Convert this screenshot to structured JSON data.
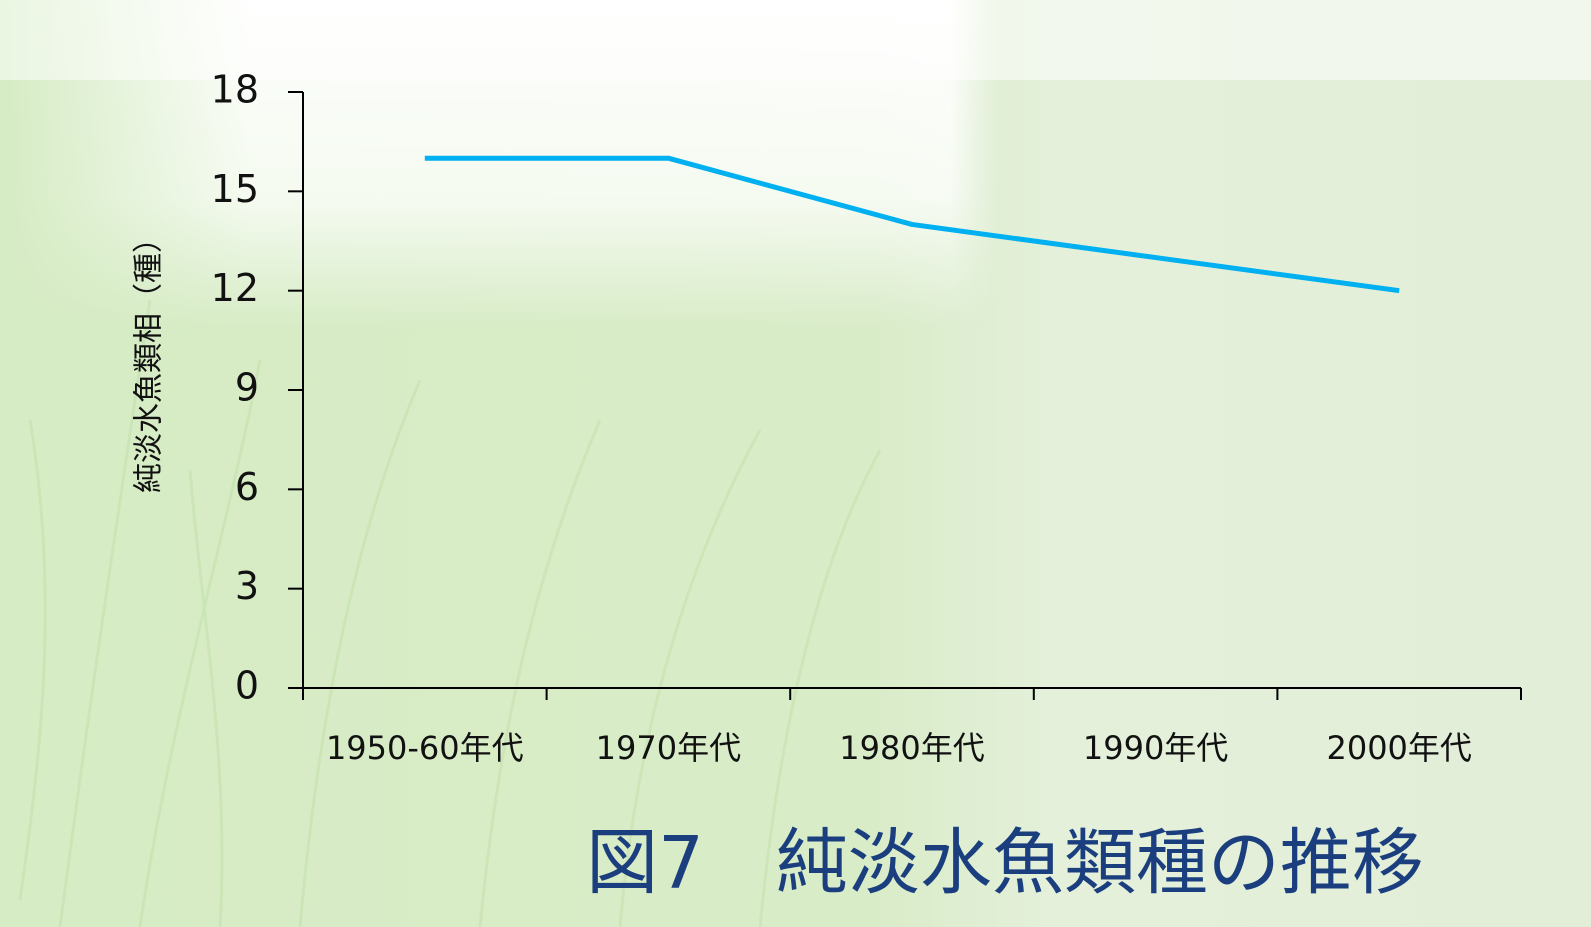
{
  "chart_data": {
    "type": "line",
    "title": "図7　純淡水魚類種の推移",
    "y_label": "純淡水魚類相（種）",
    "categories": [
      "1950-60年代",
      "1970年代",
      "1980年代",
      "1990年代",
      "2000年代"
    ],
    "values": [
      16,
      16,
      14,
      13,
      12
    ],
    "color": "#00b0f0",
    "ylim": [
      0,
      18
    ],
    "yticks": [
      0,
      3,
      6,
      9,
      12,
      15,
      18
    ],
    "grid": false
  }
}
